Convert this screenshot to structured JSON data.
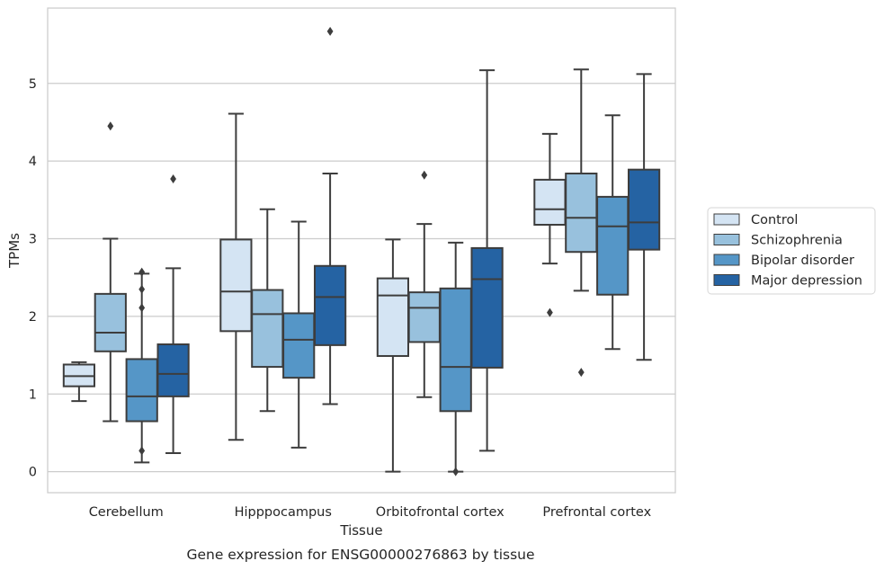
{
  "chart_data": {
    "type": "box",
    "title": "Gene expression for ENSG00000276863 by tissue",
    "xlabel": "Tissue",
    "ylabel": "TPMs",
    "ylim": [
      -0.27,
      5.97
    ],
    "yticks": [
      0,
      1,
      2,
      3,
      4,
      5
    ],
    "grid": "horizontal",
    "legend_position": "right",
    "categories": [
      "Cerebellum",
      "Hipppocampus",
      "Orbitofrontal cortex",
      "Prefrontal cortex"
    ],
    "series": [
      {
        "name": "Control",
        "color": "#d4e4f3",
        "boxes": [
          {
            "whislo": 0.91,
            "q1": 1.1,
            "med": 1.23,
            "q3": 1.38,
            "whishi": 1.41,
            "fliers": []
          },
          {
            "whislo": 0.41,
            "q1": 1.81,
            "med": 2.32,
            "q3": 2.99,
            "whishi": 4.61,
            "fliers": []
          },
          {
            "whislo": 0.0,
            "q1": 1.49,
            "med": 2.27,
            "q3": 2.49,
            "whishi": 2.99,
            "fliers": []
          },
          {
            "whislo": 2.68,
            "q1": 3.18,
            "med": 3.38,
            "q3": 3.76,
            "whishi": 4.35,
            "fliers": [
              2.05
            ]
          }
        ]
      },
      {
        "name": "Schizophrenia",
        "color": "#98c1dd",
        "boxes": [
          {
            "whislo": 0.65,
            "q1": 1.55,
            "med": 1.79,
            "q3": 2.29,
            "whishi": 3.0,
            "fliers": [
              4.45
            ]
          },
          {
            "whislo": 0.78,
            "q1": 1.35,
            "med": 2.03,
            "q3": 2.34,
            "whishi": 3.38,
            "fliers": []
          },
          {
            "whislo": 0.96,
            "q1": 1.67,
            "med": 2.11,
            "q3": 2.31,
            "whishi": 3.19,
            "fliers": [
              3.82
            ]
          },
          {
            "whislo": 2.33,
            "q1": 2.83,
            "med": 3.27,
            "q3": 3.84,
            "whishi": 5.18,
            "fliers": [
              1.28
            ]
          }
        ]
      },
      {
        "name": "Bipolar disorder",
        "color": "#5596c7",
        "boxes": [
          {
            "whislo": 0.12,
            "q1": 0.65,
            "med": 0.97,
            "q3": 1.45,
            "whishi": 2.55,
            "fliers": [
              2.57,
              2.35,
              2.11,
              0.27
            ]
          },
          {
            "whislo": 0.31,
            "q1": 1.21,
            "med": 1.7,
            "q3": 2.04,
            "whishi": 3.22,
            "fliers": []
          },
          {
            "whislo": 0.0,
            "q1": 0.78,
            "med": 1.35,
            "q3": 2.36,
            "whishi": 2.95,
            "fliers": [
              0.0
            ]
          },
          {
            "whislo": 1.58,
            "q1": 2.28,
            "med": 3.16,
            "q3": 3.54,
            "whishi": 4.59,
            "fliers": []
          }
        ]
      },
      {
        "name": "Major depression",
        "color": "#2563a3",
        "boxes": [
          {
            "whislo": 0.24,
            "q1": 0.97,
            "med": 1.26,
            "q3": 1.64,
            "whishi": 2.62,
            "fliers": [
              3.77
            ]
          },
          {
            "whislo": 0.87,
            "q1": 1.63,
            "med": 2.25,
            "q3": 2.65,
            "whishi": 3.84,
            "fliers": [
              5.67
            ]
          },
          {
            "whislo": 0.27,
            "q1": 1.34,
            "med": 2.48,
            "q3": 2.88,
            "whishi": 5.17,
            "fliers": []
          },
          {
            "whislo": 1.44,
            "q1": 2.86,
            "med": 3.21,
            "q3": 3.89,
            "whishi": 5.12,
            "fliers": []
          }
        ]
      }
    ]
  }
}
